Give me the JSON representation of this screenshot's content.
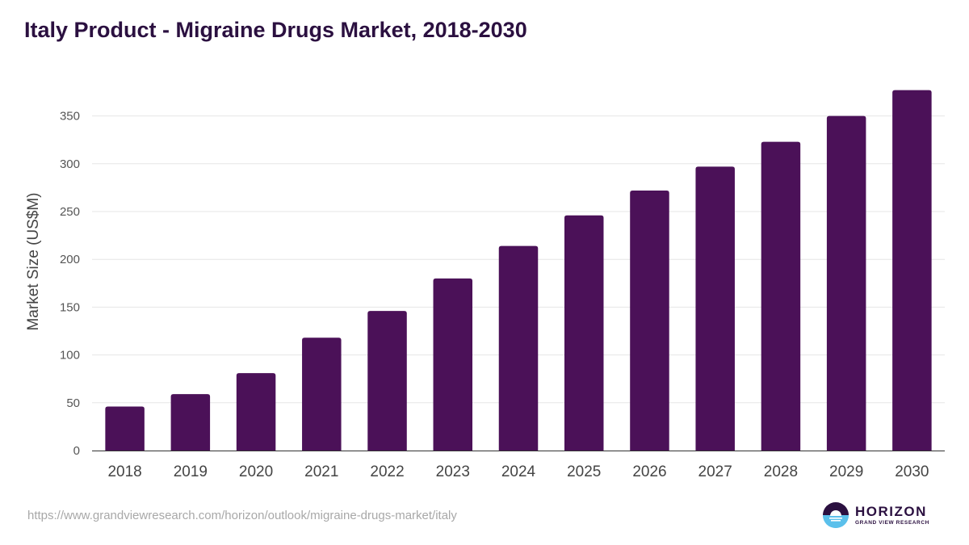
{
  "title": "Italy Product - Migraine Drugs Market, 2018-2030",
  "source_url": "https://www.grandviewresearch.com/horizon/outlook/migraine-drugs-market/italy",
  "logo": {
    "name": "HORIZON",
    "subtitle": "GRAND VIEW RESEARCH"
  },
  "colors": {
    "bar": "#4b1158",
    "title": "#2b1040",
    "grid": "#e6e6e6",
    "axis": "#333333",
    "tick_text": "#555555"
  },
  "chart_data": {
    "type": "bar",
    "title": "Italy Product - Migraine Drugs Market, 2018-2030",
    "xlabel": "",
    "ylabel": "Market Size (US$M)",
    "categories": [
      "2018",
      "2019",
      "2020",
      "2021",
      "2022",
      "2023",
      "2024",
      "2025",
      "2026",
      "2027",
      "2028",
      "2029",
      "2030"
    ],
    "values": [
      46,
      59,
      81,
      118,
      146,
      180,
      214,
      246,
      272,
      297,
      323,
      350,
      377
    ],
    "ylim": [
      0,
      400
    ],
    "yticks": [
      0,
      50,
      100,
      150,
      200,
      250,
      300,
      350
    ],
    "grid": true,
    "legend": "none"
  }
}
